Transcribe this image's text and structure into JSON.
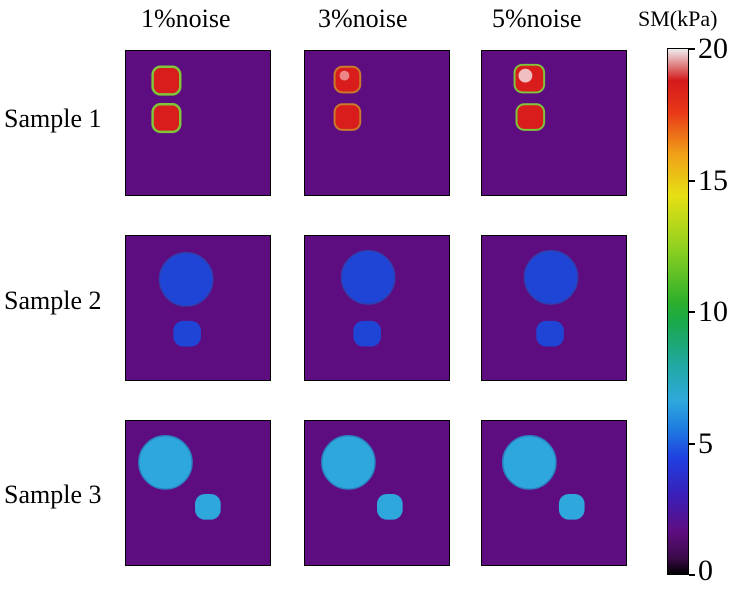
{
  "columns": [
    "1%noise",
    "3%noise",
    "5%noise"
  ],
  "rows": [
    {
      "label": "Sample 1"
    },
    {
      "label": "Sample 2"
    },
    {
      "label": "Sample 3"
    }
  ],
  "colorbar": {
    "title": "SM(kPa)",
    "ticks": [
      "20",
      "15",
      "10",
      "5",
      "0"
    ],
    "range": [
      0,
      20
    ]
  },
  "colors": {
    "background": "#5e0d80",
    "sample1_inclusion": "#d91c1c",
    "sample1_rim": "#7fc63a",
    "sample2_inclusion": "#1f45d6",
    "sample3_inclusion": "#2ea8dc"
  }
}
